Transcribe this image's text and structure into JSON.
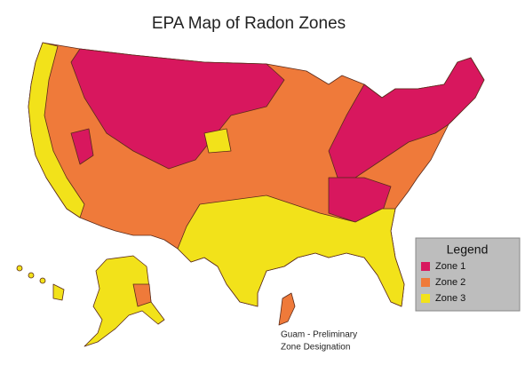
{
  "title": "EPA Map of Radon Zones",
  "legend": {
    "title": "Legend",
    "items": [
      {
        "label": "Zone 1",
        "color": "#d8175e"
      },
      {
        "label": "Zone 2",
        "color": "#ef7a3a"
      },
      {
        "label": "Zone 3",
        "color": "#f2e21a"
      }
    ]
  },
  "annotation": {
    "lines": [
      "Guam - Preliminary",
      "Zone Designation"
    ]
  }
}
